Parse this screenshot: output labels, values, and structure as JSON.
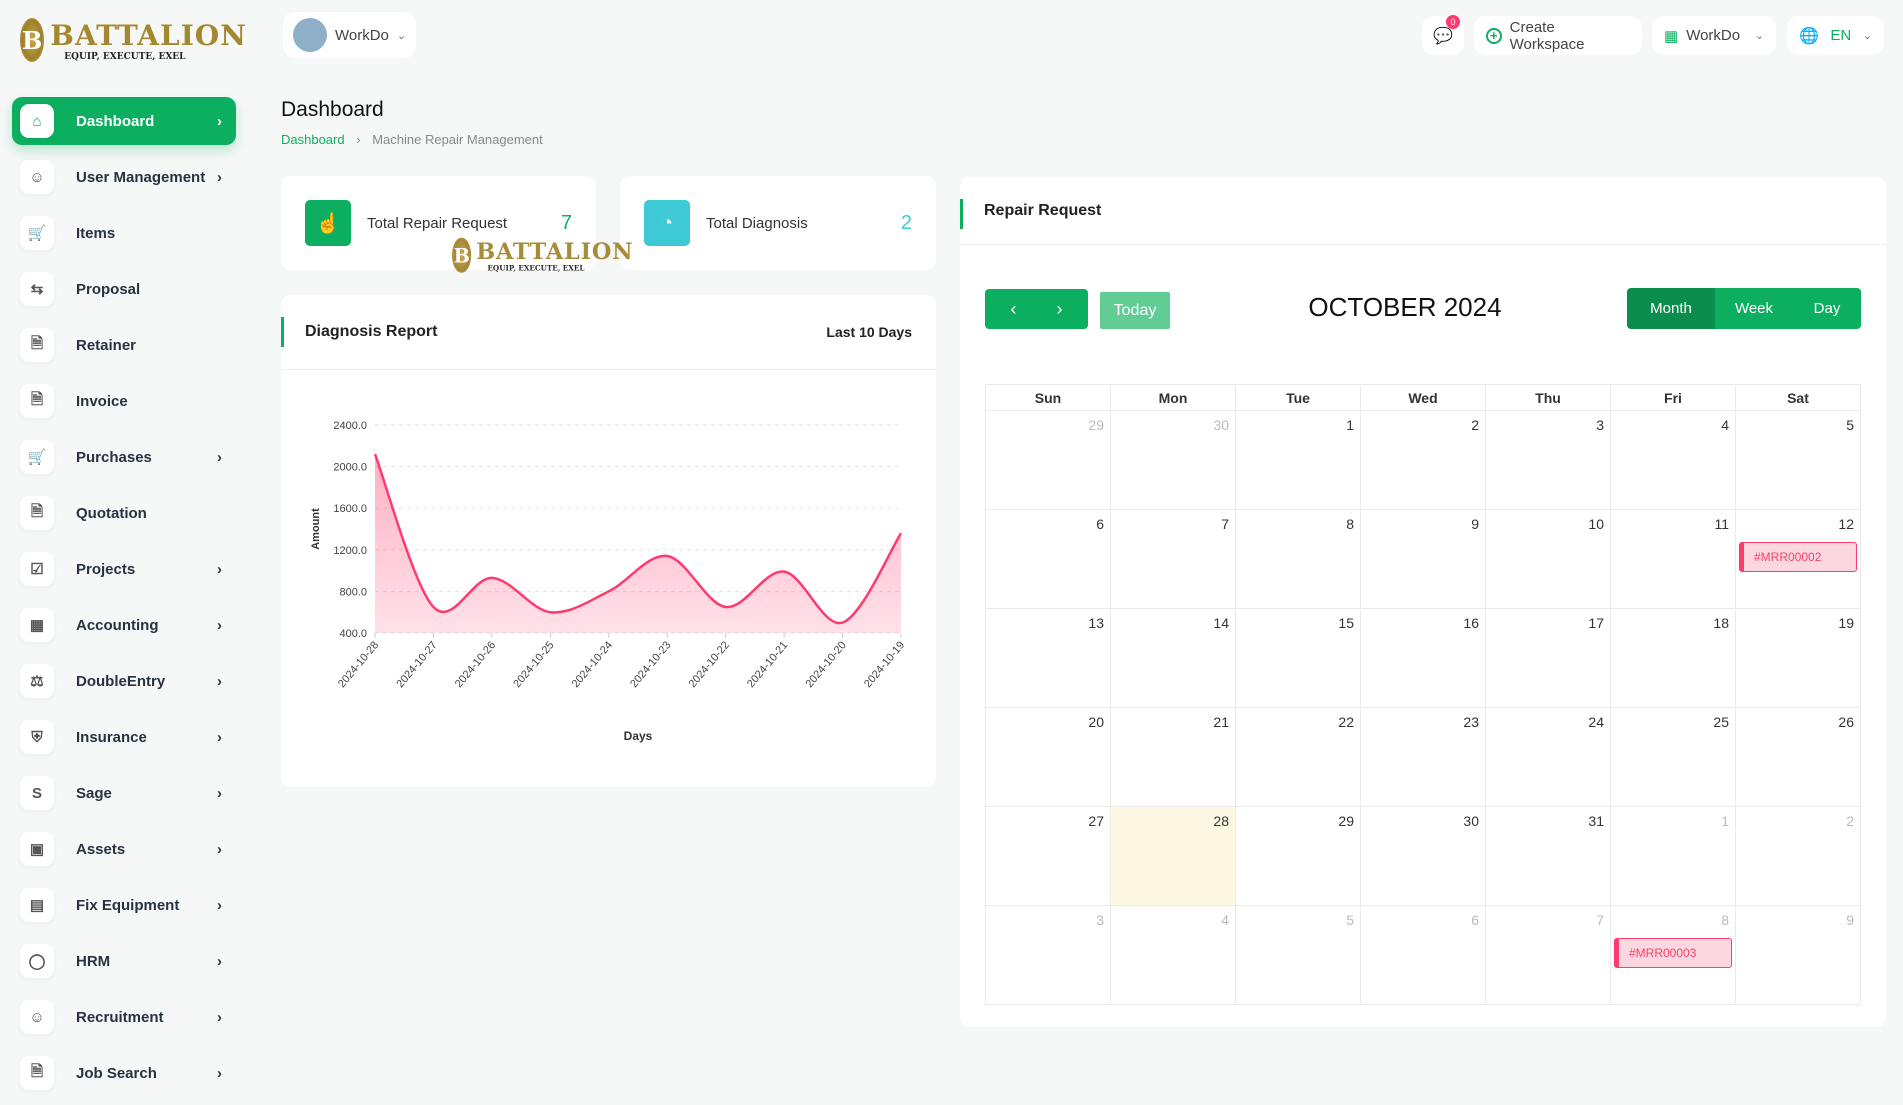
{
  "brand": {
    "name": "BATTALION",
    "tagline": "EQUIP, EXECUTE, EXEL"
  },
  "header": {
    "workspace": "WorkDo",
    "notification_count": "0",
    "create_workspace": "Create Workspace",
    "workspace_menu": "WorkDo",
    "language": "EN"
  },
  "sidebar": {
    "items": [
      {
        "label": "Dashboard",
        "icon": "home-icon",
        "chev": true
      },
      {
        "label": "User Management",
        "icon": "users-icon",
        "chev": true
      },
      {
        "label": "Items",
        "icon": "cart-icon",
        "chev": false
      },
      {
        "label": "Proposal",
        "icon": "swap-icon",
        "chev": false
      },
      {
        "label": "Retainer",
        "icon": "file-icon",
        "chev": false
      },
      {
        "label": "Invoice",
        "icon": "file-icon",
        "chev": false
      },
      {
        "label": "Purchases",
        "icon": "cart-icon",
        "chev": true
      },
      {
        "label": "Quotation",
        "icon": "file-icon",
        "chev": false
      },
      {
        "label": "Projects",
        "icon": "check-square-icon",
        "chev": true
      },
      {
        "label": "Accounting",
        "icon": "grid-icon",
        "chev": true
      },
      {
        "label": "DoubleEntry",
        "icon": "scale-icon",
        "chev": true
      },
      {
        "label": "Insurance",
        "icon": "shield-icon",
        "chev": true
      },
      {
        "label": "Sage",
        "icon": "s-icon",
        "chev": true
      },
      {
        "label": "Assets",
        "icon": "calculator-icon",
        "chev": true
      },
      {
        "label": "Fix Equipment",
        "icon": "archive-icon",
        "chev": true
      },
      {
        "label": "HRM",
        "icon": "hrm-icon",
        "chev": true
      },
      {
        "label": "Recruitment",
        "icon": "user-plus-icon",
        "chev": true
      },
      {
        "label": "Job Search",
        "icon": "file-icon",
        "chev": true
      }
    ]
  },
  "page": {
    "title": "Dashboard",
    "breadcrumb": [
      "Dashboard",
      "Machine Repair Management"
    ]
  },
  "stats": [
    {
      "label": "Total Repair Request",
      "value": "7",
      "color": "#0caf60"
    },
    {
      "label": "Total Diagnosis",
      "value": "2",
      "color": "#3ec9d6"
    }
  ],
  "diagnosis": {
    "title": "Diagnosis Report",
    "range": "Last 10 Days"
  },
  "chart_data": {
    "type": "area",
    "xlabel": "Days",
    "ylabel": "Amount",
    "ylim": [
      400,
      2400
    ],
    "yticks": [
      "2400.0",
      "2000.0",
      "1600.0",
      "1200.0",
      "800.0",
      "400.0"
    ],
    "categories": [
      "2024-10-28",
      "2024-10-27",
      "2024-10-26",
      "2024-10-25",
      "2024-10-24",
      "2024-10-23",
      "2024-10-22",
      "2024-10-21",
      "2024-10-20",
      "2024-10-19"
    ],
    "values": [
      2120,
      650,
      930,
      600,
      800,
      1140,
      650,
      990,
      500,
      1360
    ],
    "color": "#ff3a6e",
    "grid": true
  },
  "calendar": {
    "title": "Repair Request",
    "month": "OCTOBER 2024",
    "today_label": "Today",
    "views": [
      "Month",
      "Week",
      "Day"
    ],
    "active_view": "Month",
    "weekdays": [
      "Sun",
      "Mon",
      "Tue",
      "Wed",
      "Thu",
      "Fri",
      "Sat"
    ],
    "weeks": [
      [
        {
          "d": "29",
          "o": 1
        },
        {
          "d": "30",
          "o": 1
        },
        {
          "d": "1"
        },
        {
          "d": "2"
        },
        {
          "d": "3"
        },
        {
          "d": "4"
        },
        {
          "d": "5"
        }
      ],
      [
        {
          "d": "6"
        },
        {
          "d": "7"
        },
        {
          "d": "8"
        },
        {
          "d": "9"
        },
        {
          "d": "10"
        },
        {
          "d": "11"
        },
        {
          "d": "12",
          "ev": "#MRR00002"
        }
      ],
      [
        {
          "d": "13"
        },
        {
          "d": "14"
        },
        {
          "d": "15"
        },
        {
          "d": "16"
        },
        {
          "d": "17"
        },
        {
          "d": "18"
        },
        {
          "d": "19"
        }
      ],
      [
        {
          "d": "20"
        },
        {
          "d": "21"
        },
        {
          "d": "22"
        },
        {
          "d": "23"
        },
        {
          "d": "24"
        },
        {
          "d": "25"
        },
        {
          "d": "26"
        }
      ],
      [
        {
          "d": "27"
        },
        {
          "d": "28",
          "t": 1
        },
        {
          "d": "29"
        },
        {
          "d": "30"
        },
        {
          "d": "31"
        },
        {
          "d": "1",
          "o": 1
        },
        {
          "d": "2",
          "o": 1
        }
      ],
      [
        {
          "d": "3",
          "o": 1
        },
        {
          "d": "4",
          "o": 1
        },
        {
          "d": "5",
          "o": 1
        },
        {
          "d": "6",
          "o": 1
        },
        {
          "d": "7",
          "o": 1
        },
        {
          "d": "8",
          "o": 1,
          "ev": "#MRR00003"
        },
        {
          "d": "9",
          "o": 1
        }
      ]
    ]
  }
}
